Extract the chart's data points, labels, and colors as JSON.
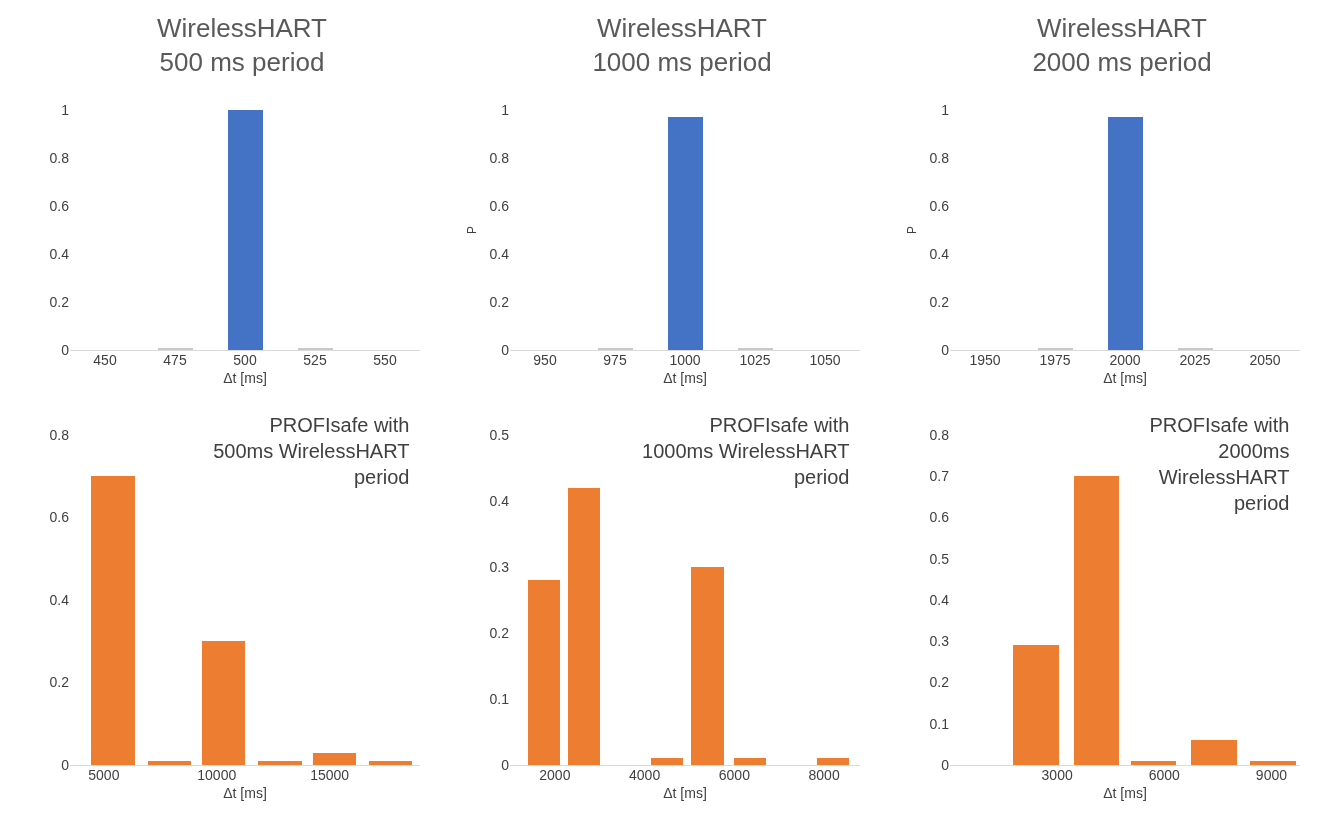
{
  "chart_data": [
    {
      "type": "bar",
      "title": "WirelessHART\n500 ms period",
      "xlabel": "Δt [ms]",
      "categories": [
        "450",
        "475",
        "500",
        "525",
        "550"
      ],
      "values": [
        0,
        0.01,
        1,
        0.01,
        0
      ],
      "colors": [
        "#c9c9c9",
        "#c9c9c9",
        "#4472c4",
        "#c9c9c9",
        "#c9c9c9"
      ],
      "ylim": [
        0,
        1
      ],
      "yticks": [
        0,
        0.2,
        0.4,
        0.6,
        0.8,
        1
      ]
    },
    {
      "type": "bar",
      "title": "WirelessHART\n1000 ms period",
      "xlabel": "Δt [ms]",
      "ylabel": "P",
      "categories": [
        "950",
        "975",
        "1000",
        "1025",
        "1050"
      ],
      "values": [
        0,
        0.01,
        0.97,
        0.01,
        0
      ],
      "colors": [
        "#c9c9c9",
        "#c9c9c9",
        "#4472c4",
        "#c9c9c9",
        "#c9c9c9"
      ],
      "ylim": [
        0,
        1
      ],
      "yticks": [
        0,
        0.2,
        0.4,
        0.6,
        0.8,
        1
      ]
    },
    {
      "type": "bar",
      "title": "WirelessHART\n2000 ms period",
      "xlabel": "Δt [ms]",
      "ylabel": "P",
      "categories": [
        "1950",
        "1975",
        "2000",
        "2025",
        "2050"
      ],
      "values": [
        0,
        0.01,
        0.97,
        0.01,
        0
      ],
      "colors": [
        "#c9c9c9",
        "#c9c9c9",
        "#4472c4",
        "#c9c9c9",
        "#c9c9c9"
      ],
      "ylim": [
        0,
        1
      ],
      "yticks": [
        0,
        0.2,
        0.4,
        0.6,
        0.8,
        1
      ]
    },
    {
      "type": "bar",
      "title": "PROFIsafe with\n500ms WirelessHART\nperiod",
      "xlabel": "Δt [ms]",
      "x": [
        5400,
        7900,
        10300,
        12800,
        15200,
        17700
      ],
      "values": [
        0.7,
        0.01,
        0.3,
        0.01,
        0.03,
        0.01
      ],
      "color": "#ed7d31",
      "xlim": [
        3500,
        19000
      ],
      "xticks": [
        5000,
        10000,
        15000
      ],
      "ylim": [
        0,
        0.8
      ],
      "yticks": [
        0,
        0.2,
        0.4,
        0.6,
        0.8
      ]
    },
    {
      "type": "bar",
      "title": "PROFIsafe with\n1000ms WirelessHART\nperiod",
      "xlabel": "Δt [ms]",
      "x": [
        1750,
        2650,
        4500,
        5400,
        6350,
        8200
      ],
      "values": [
        0.28,
        0.42,
        0.01,
        0.3,
        0.01,
        0.01
      ],
      "color": "#ed7d31",
      "xlim": [
        1000,
        8800
      ],
      "xticks": [
        2000,
        4000,
        6000,
        8000
      ],
      "ylim": [
        0,
        0.5
      ],
      "yticks": [
        0,
        0.1,
        0.2,
        0.3,
        0.4,
        0.5
      ]
    },
    {
      "type": "bar",
      "title": "PROFIsafe with\n2000ms\nWirelessHART\nperiod",
      "xlabel": "Δt [ms]",
      "x": [
        2400,
        4100,
        5700,
        7400,
        9050
      ],
      "values": [
        0.29,
        0.7,
        0.01,
        0.06,
        0.01
      ],
      "color": "#ed7d31",
      "xlim": [
        0,
        9800
      ],
      "xticks": [
        3000,
        6000,
        9000
      ],
      "ylim": [
        0,
        0.8
      ],
      "yticks": [
        0,
        0.1,
        0.2,
        0.3,
        0.4,
        0.5,
        0.6,
        0.7,
        0.8
      ]
    }
  ]
}
